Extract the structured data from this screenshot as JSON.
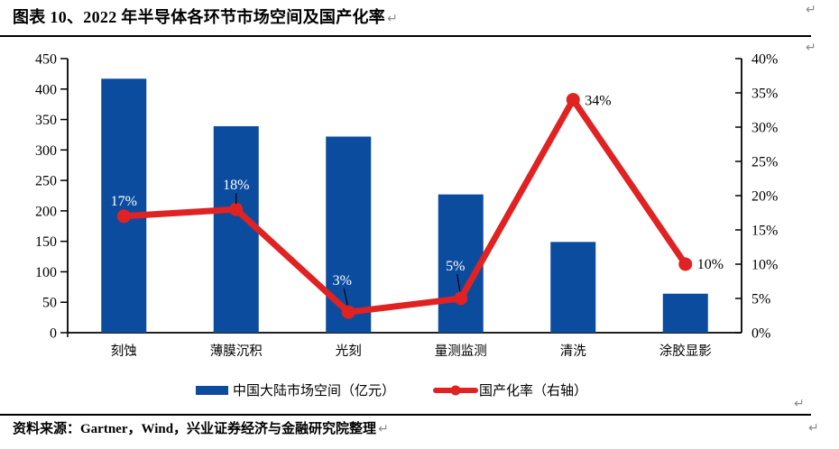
{
  "title": "图表 10、2022 年半导体各环节市场空间及国产化率",
  "source_note": "资料来源：Gartner，Wind，兴业证券经济与金融研究院整理",
  "marks": {
    "return_glyph": "↵"
  },
  "colors": {
    "bar_blue": "#0C4C9F",
    "line_red": "#E02222",
    "axis_black": "#000000",
    "mark_gray": "#8a8a8a"
  },
  "chart_data": {
    "type": "combo bar+line",
    "title": "",
    "categories": [
      "刻蚀",
      "薄膜沉积",
      "光刻",
      "量测监测",
      "清洗",
      "涂胶显影"
    ],
    "series": [
      {
        "name": "中国大陆市场空间（亿元）",
        "type": "bar",
        "axis": "left",
        "color": "#0C4C9F",
        "values": [
          417,
          339,
          322,
          227,
          149,
          64
        ]
      },
      {
        "name": "国产化率（右轴）",
        "type": "line",
        "axis": "right",
        "color": "#E02222",
        "values": [
          17,
          18,
          3,
          5,
          34,
          10
        ],
        "point_labels": [
          {
            "text": "17%",
            "color": "#FFFFFF",
            "anchor": "middle",
            "dx": 0,
            "dy": -12,
            "leader": null
          },
          {
            "text": "18%",
            "color": "#FFFFFF",
            "anchor": "middle",
            "dx": 0,
            "dy": -22,
            "leader": [
              0,
              -18,
              0,
              -6
            ]
          },
          {
            "text": "3%",
            "color": "#FFFFFF",
            "anchor": "middle",
            "dx": -7,
            "dy": -30,
            "leader": [
              -5,
              -26,
              -1,
              -8
            ]
          },
          {
            "text": "5%",
            "color": "#FFFFFF",
            "anchor": "middle",
            "dx": -6,
            "dy": -31,
            "leader": [
              -4,
              -27,
              -1,
              -8
            ]
          },
          {
            "text": "34%",
            "color": "#000000",
            "anchor": "start",
            "dx": 13,
            "dy": 6,
            "leader": null
          },
          {
            "text": "10%",
            "color": "#000000",
            "anchor": "start",
            "dx": 13,
            "dy": 5,
            "leader": null
          }
        ]
      }
    ],
    "left_axis": {
      "min": 0,
      "max": 450,
      "step": 50,
      "suffix": ""
    },
    "right_axis": {
      "min": 0,
      "max": 40,
      "step": 5,
      "suffix": "%"
    },
    "grid": false,
    "legend_position": "bottom"
  }
}
